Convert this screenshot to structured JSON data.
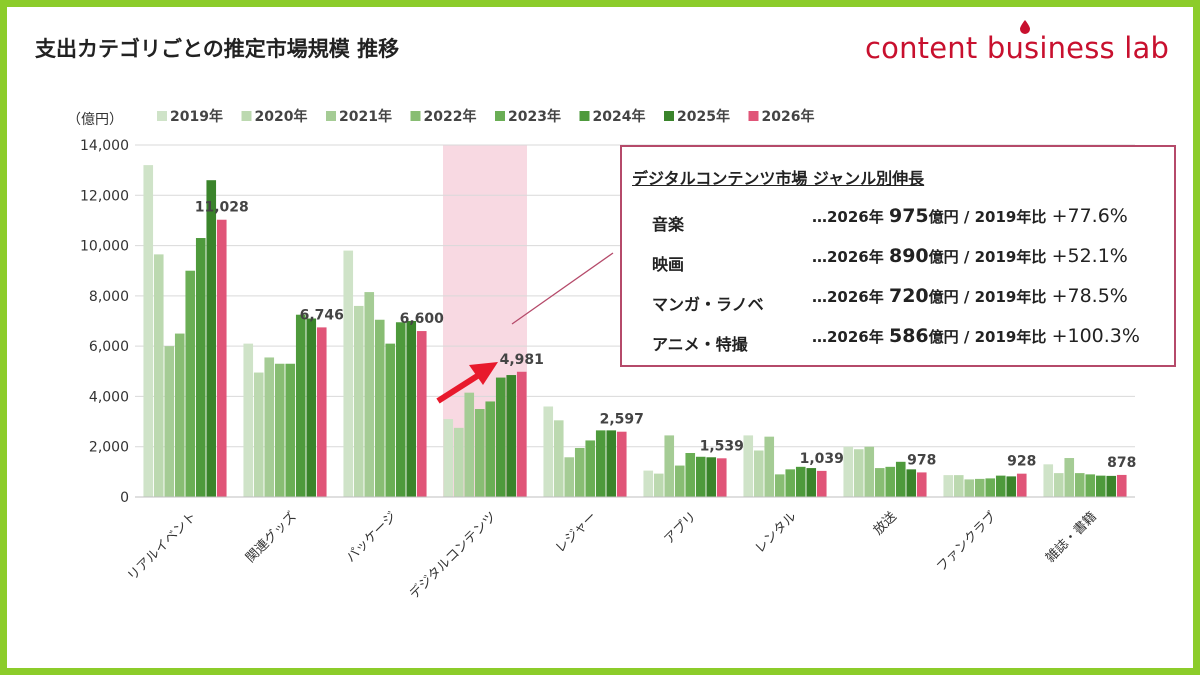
{
  "header": {
    "title": "支出カテゴリごとの推定市場規模 推移",
    "brand": "content business lab"
  },
  "chart_data": {
    "type": "bar",
    "unit_label": "（億円）",
    "ylim": [
      0,
      14000
    ],
    "yticks": [
      "0",
      "2,000",
      "4,000",
      "6,000",
      "8,000",
      "10,000",
      "12,000",
      "14,000"
    ],
    "ytick_values": [
      0,
      2000,
      4000,
      6000,
      8000,
      10000,
      12000,
      14000
    ],
    "grid": true,
    "legend_position": "top",
    "categories": [
      "リアルイベント",
      "関連グッズ",
      "パッケージ",
      "デジタルコンテンツ",
      "レジャー",
      "アプリ",
      "レンタル",
      "放送",
      "ファンクラブ",
      "雑誌・書籍"
    ],
    "series": [
      {
        "name": "2019年",
        "color": "#cfe3c8",
        "values": [
          13200,
          6100,
          9800,
          3100,
          3600,
          1050,
          2450,
          2000,
          870,
          1300
        ]
      },
      {
        "name": "2020年",
        "color": "#bcd9b0",
        "values": [
          9650,
          4950,
          7600,
          2750,
          3050,
          930,
          1850,
          1900,
          870,
          950
        ]
      },
      {
        "name": "2021年",
        "color": "#a5cc95",
        "values": [
          6000,
          5550,
          8150,
          4150,
          1580,
          2450,
          2400,
          2000,
          700,
          1550
        ]
      },
      {
        "name": "2022年",
        "color": "#88bd73",
        "values": [
          6500,
          5300,
          7050,
          3500,
          1950,
          1250,
          900,
          1150,
          720,
          950
        ]
      },
      {
        "name": "2023年",
        "color": "#6aae55",
        "values": [
          9000,
          5300,
          6100,
          3800,
          2250,
          1750,
          1100,
          1200,
          740,
          900
        ]
      },
      {
        "name": "2024年",
        "color": "#4e9a3c",
        "values": [
          10300,
          7250,
          6950,
          4750,
          2650,
          1600,
          1200,
          1400,
          850,
          850
        ]
      },
      {
        "name": "2025年",
        "color": "#3a842b",
        "values": [
          12600,
          7100,
          7000,
          4850,
          2650,
          1580,
          1150,
          1100,
          820,
          840
        ]
      },
      {
        "name": "2026年",
        "color": "#e05578",
        "values": [
          11028,
          6746,
          6600,
          4981,
          2597,
          1539,
          1039,
          978,
          928,
          878
        ]
      }
    ],
    "data_labels": [
      "11,028",
      "6,746",
      "6,600",
      "4,981",
      "2,597",
      "1,539",
      "1,039",
      "978",
      "928",
      "878"
    ],
    "highlight_category": "デジタルコンテンツ",
    "highlight_color": "#f8d9e2"
  },
  "callout": {
    "title": "デジタルコンテンツ市場 ジャンル別伸長",
    "border_color": "#b54a6a",
    "rows": [
      {
        "genre": "音楽",
        "pre": "…2026年 ",
        "amount": "975",
        "unit": "億円 / 2019年比 ",
        "pct": "+77.6%"
      },
      {
        "genre": "映画",
        "pre": "…2026年 ",
        "amount": "890",
        "unit": "億円 / 2019年比 ",
        "pct": "+52.1%"
      },
      {
        "genre": "マンガ・ラノベ",
        "pre": "…2026年 ",
        "amount": "720",
        "unit": "億円 / 2019年比 ",
        "pct": "+78.5%"
      },
      {
        "genre": "アニメ・特撮",
        "pre": "…2026年 ",
        "amount": "586",
        "unit": "億円 / 2019年比 ",
        "pct": "+100.3%"
      }
    ]
  },
  "colors": {
    "frame": "#8ccc2a",
    "brand": "#c8102e",
    "arrow": "#e8192c"
  }
}
